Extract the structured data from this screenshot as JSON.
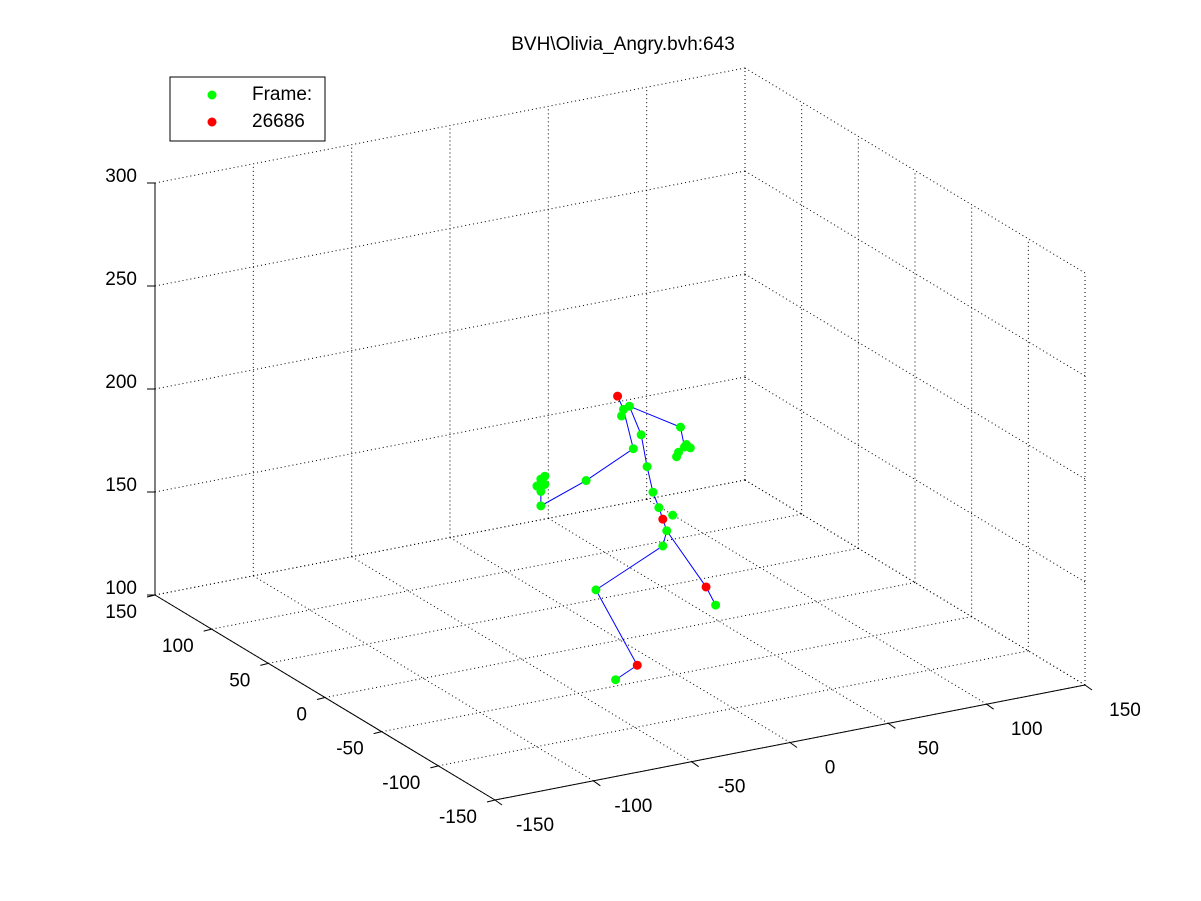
{
  "chart_data": {
    "type": "scatter3d",
    "title": "BVH\\Olivia_Angry.bvh:643",
    "xlim": [
      -150,
      150
    ],
    "xticks": [
      -150,
      -100,
      -50,
      0,
      50,
      100,
      150
    ],
    "ylim": [
      -150,
      150
    ],
    "yticks": [
      -150,
      -100,
      -50,
      0,
      50,
      100,
      150
    ],
    "zlim": [
      100,
      300
    ],
    "zticks": [
      100,
      150,
      200,
      250,
      300
    ],
    "grid": true,
    "legend": "upper left",
    "series": [
      {
        "name": "Frame:",
        "color": "#00ff00",
        "x": [
          -4,
          -1,
          -5,
          5,
          8,
          11,
          14,
          21,
          18,
          16,
          -18,
          -27,
          59,
          25,
          27,
          24,
          30,
          23,
          28,
          1,
          -23,
          -46,
          -46,
          -44,
          -48,
          -46,
          -44
        ],
        "y": [
          -10,
          -10,
          -10,
          -10,
          -10,
          -10,
          -10,
          -10,
          -10,
          -10,
          -10,
          -43,
          18,
          -10,
          -10,
          -10,
          -10,
          -10,
          -10,
          -10,
          -10,
          -10,
          -10,
          -10,
          -10,
          -10,
          -10
        ],
        "z": [
          216,
          217,
          213,
          202,
          186,
          173,
          165,
          160,
          153,
          146,
          131,
          100,
          100,
          202,
          192,
          190,
          191,
          188,
          193,
          196,
          185,
          177,
          190,
          191,
          187,
          184,
          187
        ]
      },
      {
        "name": "26686",
        "color": "#ff0000",
        "x": [
          -7,
          16,
          38,
          -16
        ],
        "y": [
          -10,
          -10,
          -10,
          -43
        ],
        "z": [
          223,
          159,
          122,
          105
        ]
      }
    ],
    "lines": {
      "color": "#0000ff",
      "x": [
        -7,
        -4,
        null,
        -4,
        1,
        -23,
        -46,
        -46,
        null,
        -1,
        5,
        8,
        11,
        14,
        16,
        18,
        16,
        null,
        -1,
        25,
        27,
        null,
        16,
        -18,
        -16,
        -27,
        null,
        18,
        38,
        59
      ],
      "y": [
        -10,
        -10,
        null,
        -10,
        -10,
        -10,
        -10,
        -10,
        null,
        -10,
        -10,
        -10,
        -10,
        -10,
        -10,
        -10,
        -10,
        null,
        -10,
        -10,
        -10,
        null,
        -10,
        -10,
        -43,
        -43,
        null,
        -10,
        -10,
        18
      ],
      "z": [
        223,
        216,
        null,
        216,
        196,
        185,
        177,
        184,
        null,
        217,
        202,
        186,
        173,
        165,
        159,
        153,
        146,
        null,
        217,
        202,
        192,
        null,
        146,
        131,
        105,
        100,
        null,
        153,
        122,
        100
      ]
    }
  }
}
